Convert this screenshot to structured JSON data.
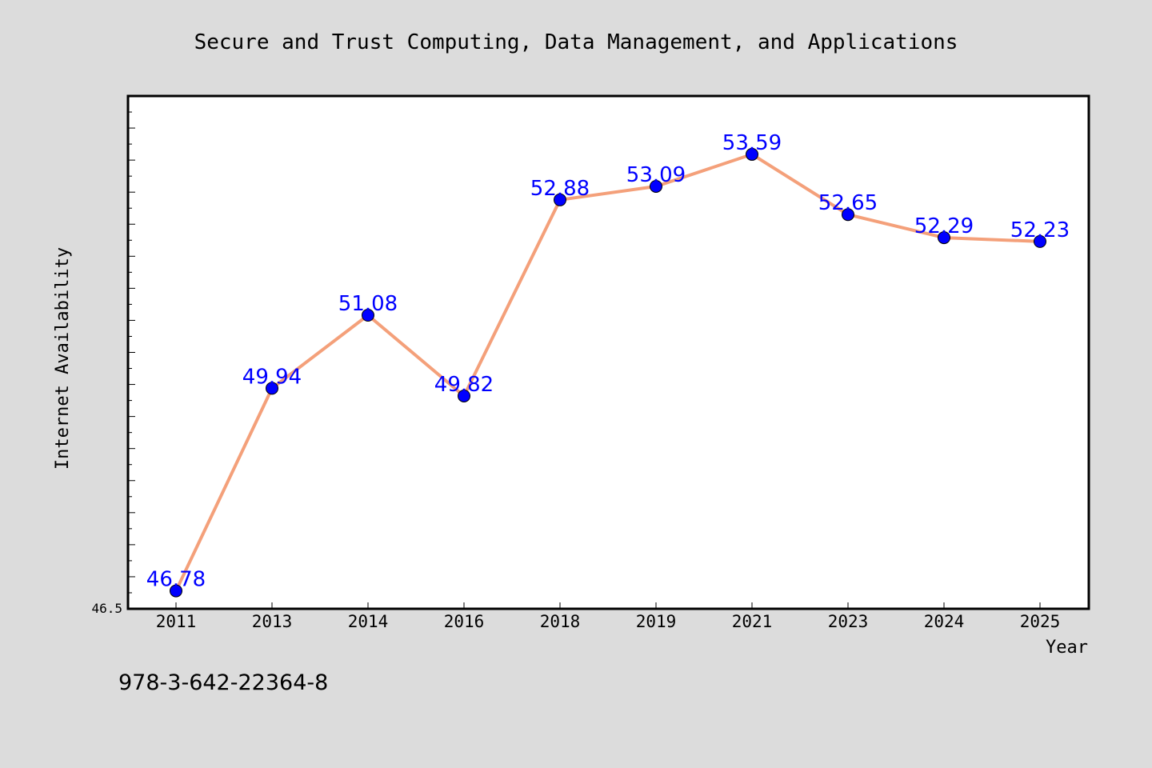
{
  "chart_data": {
    "type": "line",
    "title": "Secure and Trust Computing, Data Management, and Applications",
    "xlabel": "Year",
    "ylabel": "Internet Availability",
    "categories": [
      "2011",
      "2013",
      "2014",
      "2016",
      "2018",
      "2019",
      "2021",
      "2023",
      "2024",
      "2025"
    ],
    "series": [
      {
        "values": [
          46.78,
          49.94,
          51.08,
          49.82,
          52.88,
          53.09,
          53.59,
          52.65,
          52.29,
          52.23
        ],
        "labels": [
          "46.78",
          "49.94",
          "51.08",
          "49.82",
          "52.88",
          "53.09",
          "53.59",
          "52.65",
          "52.29",
          "52.23"
        ],
        "line_color": "#f4a07a",
        "marker_color": "#0000ff"
      }
    ],
    "ylim": [
      46.5,
      54.5
    ],
    "ytick_min_label": "46.5",
    "grid": false,
    "legend": "none"
  },
  "footer": {
    "isbn": "978-3-642-22364-8"
  },
  "colors": {
    "background": "#dcdcdc",
    "plot_area": "#ffffff",
    "label": "#0000ff"
  }
}
